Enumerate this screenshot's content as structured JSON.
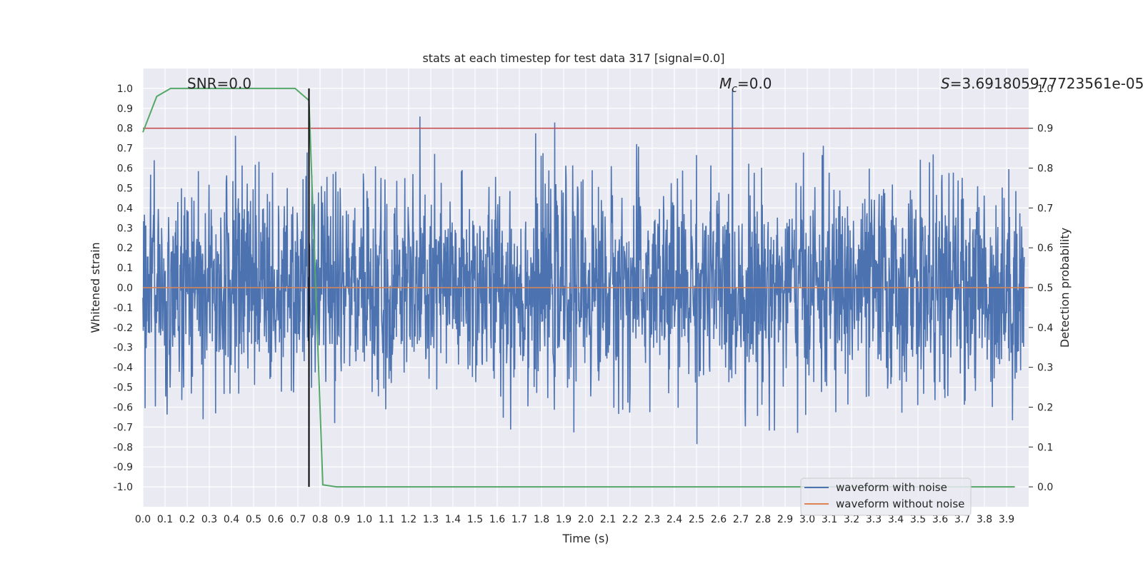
{
  "chart_data": {
    "type": "line",
    "title": "stats at each timestep for test data 317 [signal=0.0]",
    "xlabel": "Time (s)",
    "ylabel": "Whitened strain",
    "y2label": "Detection probability",
    "xlim": [
      0.0,
      4.0
    ],
    "ylim": [
      -1.1,
      1.1
    ],
    "y2lim": [
      -0.05,
      1.05
    ],
    "xticks": [
      "0.0",
      "0.1",
      "0.2",
      "0.3",
      "0.4",
      "0.5",
      "0.6",
      "0.7",
      "0.8",
      "0.9",
      "1.0",
      "1.1",
      "1.2",
      "1.3",
      "1.4",
      "1.5",
      "1.6",
      "1.7",
      "1.8",
      "1.9",
      "2.0",
      "2.1",
      "2.2",
      "2.3",
      "2.4",
      "2.5",
      "2.6",
      "2.7",
      "2.8",
      "2.9",
      "3.0",
      "3.1",
      "3.2",
      "3.3",
      "3.4",
      "3.5",
      "3.6",
      "3.7",
      "3.8",
      "3.9"
    ],
    "yticks": [
      "1.0",
      "0.9",
      "0.8",
      "0.7",
      "0.6",
      "0.5",
      "0.4",
      "0.3",
      "0.2",
      "0.1",
      "0.0",
      "-0.1",
      "-0.2",
      "-0.3",
      "-0.4",
      "-0.5",
      "-0.6",
      "-0.7",
      "-0.8",
      "-0.9",
      "-1.0"
    ],
    "y2ticks": [
      "1.0",
      "0.9",
      "0.8",
      "0.7",
      "0.6",
      "0.5",
      "0.4",
      "0.3",
      "0.2",
      "0.1",
      "0.0"
    ],
    "annotations": {
      "snr": "SNR=0.0",
      "mc_symbol": "M",
      "mc_sub": "c",
      "mc_value": "=0.0",
      "s_symbol": "S",
      "s_value": "=3.691805977723561e-05"
    },
    "series": [
      {
        "name": "waveform with noise",
        "color": "#4c72b0",
        "kind": "noise",
        "amplitude_envelope": 1.0,
        "duration_s": 4.0
      },
      {
        "name": "waveform without noise",
        "color": "#dd8452",
        "kind": "flat",
        "value": 0.0
      },
      {
        "name": "detection probability",
        "color": "#55a868",
        "axis": "right",
        "x": [
          0.0,
          0.0625,
          0.125,
          0.1875,
          0.25,
          0.3125,
          0.375,
          0.4375,
          0.5,
          0.5625,
          0.625,
          0.6875,
          0.75,
          0.8125,
          0.875,
          0.9375,
          1.0,
          1.5,
          2.0,
          2.5,
          3.0,
          3.5,
          3.9375
        ],
        "values": [
          0.89,
          0.98,
          1.0,
          1.0,
          1.0,
          1.0,
          1.0,
          1.0,
          1.0,
          1.0,
          1.0,
          1.0,
          0.97,
          0.005,
          0.0,
          0.0,
          0.0,
          0.0,
          0.0,
          0.0,
          0.0,
          0.0,
          0.0
        ]
      }
    ],
    "threshold_line": {
      "value": 0.9,
      "axis": "right",
      "color": "#c44e52"
    },
    "marker_line": {
      "x": 0.75,
      "y_from": -1.0,
      "y_to": 1.0,
      "color": "#000000"
    },
    "legend": {
      "placement": "bottom-right"
    }
  }
}
